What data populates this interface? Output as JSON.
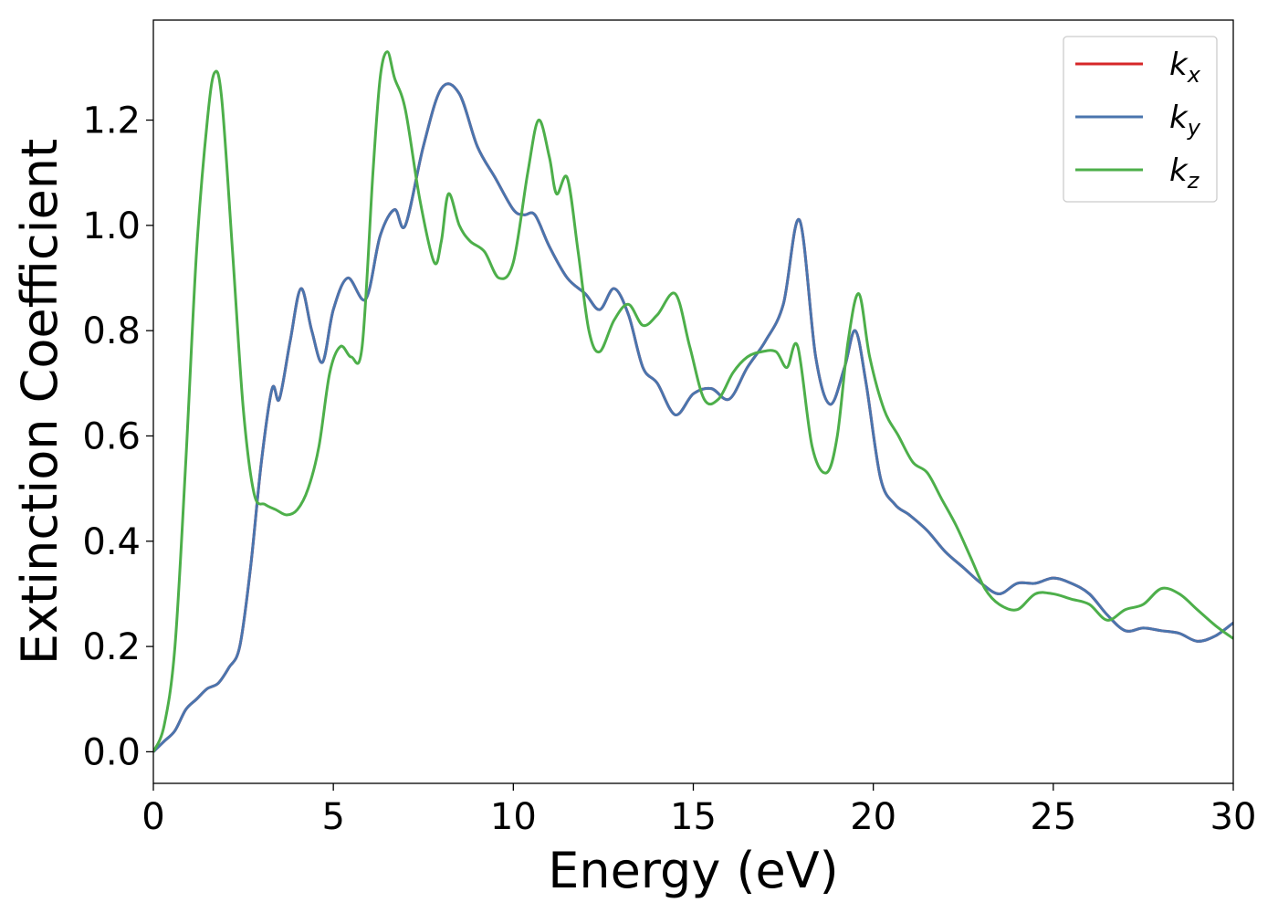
{
  "chart_data": {
    "type": "line",
    "xlabel": "Energy (eV)",
    "ylabel": "Extinction Coefficient",
    "xlim": [
      0,
      30
    ],
    "ylim": [
      -0.06,
      1.39
    ],
    "xticks": [
      0,
      5,
      10,
      15,
      20,
      25,
      30
    ],
    "yticks": [
      0.0,
      0.2,
      0.4,
      0.6,
      0.8,
      1.0,
      1.2
    ],
    "xtick_labels": [
      "0",
      "5",
      "10",
      "15",
      "20",
      "25",
      "30"
    ],
    "ytick_labels": [
      "0.0",
      "0.2",
      "0.4",
      "0.6",
      "0.8",
      "1.0",
      "1.2"
    ],
    "grid": false,
    "legend": "top-right",
    "series": [
      {
        "name": "k_x",
        "legend_main": "k",
        "legend_sub": "x",
        "color": "#d62728",
        "x": [
          0,
          0.3,
          0.6,
          0.9,
          1.2,
          1.5,
          1.8,
          2.1,
          2.4,
          2.7,
          3.0,
          3.3,
          3.5,
          3.8,
          4.1,
          4.4,
          4.7,
          5.0,
          5.4,
          5.9,
          6.3,
          6.7,
          7.0,
          7.5,
          8.0,
          8.5,
          9.0,
          9.5,
          10.0,
          10.3,
          10.6,
          11.0,
          11.5,
          12.0,
          12.4,
          12.8,
          13.2,
          13.6,
          14.0,
          14.5,
          15.0,
          15.5,
          16.0,
          16.5,
          17.0,
          17.5,
          17.95,
          18.4,
          18.8,
          19.2,
          19.5,
          19.8,
          20.2,
          20.6,
          21.0,
          21.5,
          22.0,
          22.5,
          23.0,
          23.5,
          24.0,
          24.5,
          25.0,
          25.5,
          26.0,
          26.5,
          27.0,
          27.5,
          28.0,
          28.5,
          29.0,
          29.5,
          30.0
        ],
        "y": [
          0.0,
          0.02,
          0.04,
          0.08,
          0.1,
          0.12,
          0.13,
          0.16,
          0.2,
          0.35,
          0.55,
          0.69,
          0.67,
          0.78,
          0.88,
          0.8,
          0.74,
          0.84,
          0.9,
          0.86,
          0.98,
          1.03,
          1.0,
          1.15,
          1.26,
          1.25,
          1.15,
          1.09,
          1.03,
          1.02,
          1.02,
          0.96,
          0.9,
          0.87,
          0.84,
          0.88,
          0.83,
          0.73,
          0.7,
          0.64,
          0.68,
          0.69,
          0.67,
          0.73,
          0.78,
          0.85,
          1.01,
          0.75,
          0.66,
          0.73,
          0.8,
          0.7,
          0.52,
          0.47,
          0.45,
          0.42,
          0.38,
          0.35,
          0.32,
          0.3,
          0.32,
          0.32,
          0.33,
          0.32,
          0.3,
          0.26,
          0.23,
          0.235,
          0.23,
          0.225,
          0.21,
          0.22,
          0.245
        ]
      },
      {
        "name": "k_y",
        "legend_main": "k",
        "legend_sub": "y",
        "color": "#4a75ae",
        "x": [
          0,
          0.3,
          0.6,
          0.9,
          1.2,
          1.5,
          1.8,
          2.1,
          2.4,
          2.7,
          3.0,
          3.3,
          3.5,
          3.8,
          4.1,
          4.4,
          4.7,
          5.0,
          5.4,
          5.9,
          6.3,
          6.7,
          7.0,
          7.5,
          8.0,
          8.5,
          9.0,
          9.5,
          10.0,
          10.3,
          10.6,
          11.0,
          11.5,
          12.0,
          12.4,
          12.8,
          13.2,
          13.6,
          14.0,
          14.5,
          15.0,
          15.5,
          16.0,
          16.5,
          17.0,
          17.5,
          17.95,
          18.4,
          18.8,
          19.2,
          19.5,
          19.8,
          20.2,
          20.6,
          21.0,
          21.5,
          22.0,
          22.5,
          23.0,
          23.5,
          24.0,
          24.5,
          25.0,
          25.5,
          26.0,
          26.5,
          27.0,
          27.5,
          28.0,
          28.5,
          29.0,
          29.5,
          30.0
        ],
        "y": [
          0.0,
          0.02,
          0.04,
          0.08,
          0.1,
          0.12,
          0.13,
          0.16,
          0.2,
          0.35,
          0.55,
          0.69,
          0.67,
          0.78,
          0.88,
          0.8,
          0.74,
          0.84,
          0.9,
          0.86,
          0.98,
          1.03,
          1.0,
          1.15,
          1.26,
          1.25,
          1.15,
          1.09,
          1.03,
          1.02,
          1.02,
          0.96,
          0.9,
          0.87,
          0.84,
          0.88,
          0.83,
          0.73,
          0.7,
          0.64,
          0.68,
          0.69,
          0.67,
          0.73,
          0.78,
          0.85,
          1.01,
          0.75,
          0.66,
          0.73,
          0.8,
          0.7,
          0.52,
          0.47,
          0.45,
          0.42,
          0.38,
          0.35,
          0.32,
          0.3,
          0.32,
          0.32,
          0.33,
          0.32,
          0.3,
          0.26,
          0.23,
          0.235,
          0.23,
          0.225,
          0.21,
          0.22,
          0.245
        ]
      },
      {
        "name": "k_z",
        "legend_main": "k",
        "legend_sub": "z",
        "color": "#4daf4a",
        "x": [
          0,
          0.3,
          0.6,
          0.9,
          1.2,
          1.5,
          1.7,
          1.9,
          2.2,
          2.5,
          2.8,
          3.1,
          3.4,
          3.7,
          4.0,
          4.3,
          4.6,
          4.9,
          5.2,
          5.5,
          5.8,
          6.1,
          6.3,
          6.5,
          6.7,
          7.0,
          7.4,
          7.8,
          8.0,
          8.2,
          8.5,
          8.8,
          9.2,
          9.6,
          10.0,
          10.4,
          10.7,
          11.0,
          11.2,
          11.5,
          11.8,
          12.1,
          12.4,
          12.8,
          13.2,
          13.6,
          14.0,
          14.5,
          14.9,
          15.3,
          15.7,
          16.1,
          16.5,
          16.9,
          17.3,
          17.6,
          17.9,
          18.3,
          18.7,
          19.0,
          19.3,
          19.6,
          19.9,
          20.3,
          20.7,
          21.1,
          21.5,
          21.9,
          22.3,
          22.7,
          23.1,
          23.5,
          24.0,
          24.5,
          25.0,
          25.5,
          26.0,
          26.5,
          27.0,
          27.5,
          28.0,
          28.5,
          29.0,
          29.5,
          30.0
        ],
        "y": [
          0.0,
          0.05,
          0.2,
          0.55,
          0.95,
          1.2,
          1.29,
          1.24,
          0.95,
          0.65,
          0.49,
          0.47,
          0.46,
          0.45,
          0.46,
          0.5,
          0.58,
          0.72,
          0.77,
          0.75,
          0.77,
          1.1,
          1.28,
          1.33,
          1.28,
          1.22,
          1.05,
          0.93,
          0.97,
          1.06,
          1.0,
          0.97,
          0.95,
          0.9,
          0.93,
          1.1,
          1.2,
          1.13,
          1.06,
          1.09,
          0.95,
          0.8,
          0.76,
          0.82,
          0.85,
          0.81,
          0.83,
          0.87,
          0.77,
          0.67,
          0.67,
          0.72,
          0.75,
          0.76,
          0.76,
          0.73,
          0.77,
          0.58,
          0.53,
          0.6,
          0.78,
          0.87,
          0.75,
          0.65,
          0.6,
          0.55,
          0.53,
          0.48,
          0.43,
          0.37,
          0.31,
          0.28,
          0.27,
          0.3,
          0.3,
          0.29,
          0.28,
          0.25,
          0.27,
          0.28,
          0.31,
          0.3,
          0.27,
          0.24,
          0.215
        ]
      }
    ]
  }
}
